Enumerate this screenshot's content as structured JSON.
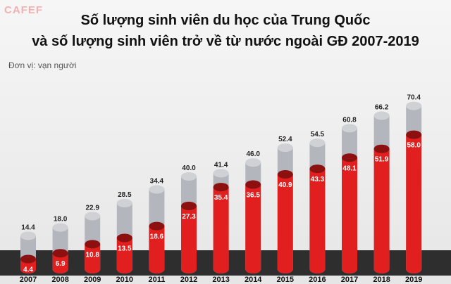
{
  "logo_text": "CAFEF",
  "header": {
    "title_line1": "Số lượng sinh viên du học của Trung Quốc",
    "title_line2": "và số lượng sinh viên trở về từ nước ngoài GĐ 2007-2019",
    "unit": "Đơn vị: vạn người"
  },
  "colors": {
    "outbound": "#b3b6bc",
    "returned": "#e11f1f",
    "returned_top": "#8d1010",
    "band": "#2e2e2e"
  },
  "chart_data": {
    "type": "bar",
    "title": "Số lượng sinh viên du học của Trung Quốc và số lượng sinh viên trở về từ nước ngoài GĐ 2007-2019",
    "ylabel": "Đơn vị: vạn người",
    "categories": [
      "2007",
      "2008",
      "2009",
      "2010",
      "2011",
      "2012",
      "2013",
      "2014",
      "2015",
      "2016",
      "2017",
      "2018",
      "2019"
    ],
    "series": [
      {
        "values": [
          14.4,
          18.0,
          22.9,
          28.5,
          34.4,
          40.0,
          41.4,
          46.0,
          52.4,
          54.5,
          60.8,
          66.2,
          70.4
        ]
      },
      {
        "values": [
          4.4,
          6.9,
          10.8,
          13.5,
          18.6,
          27.3,
          35.4,
          36.5,
          40.9,
          43.3,
          48.1,
          51.9,
          58.0
        ]
      }
    ],
    "ylim": [
      0,
      72
    ],
    "grid": false,
    "legend": "none"
  }
}
